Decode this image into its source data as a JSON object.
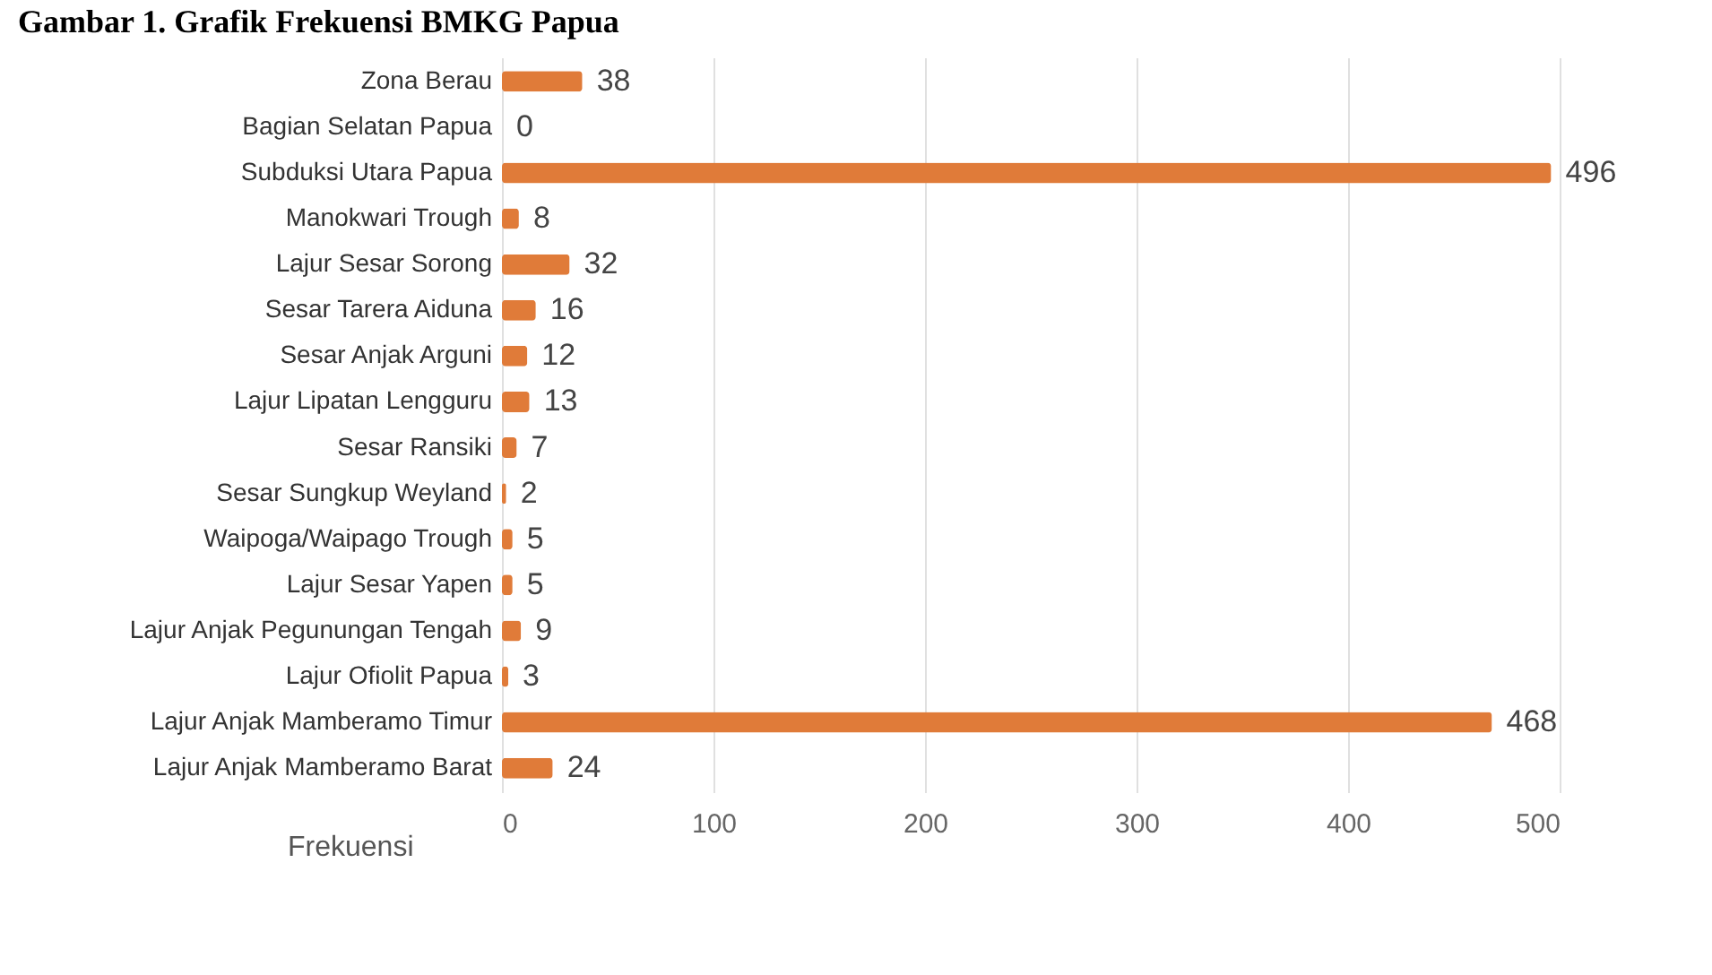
{
  "chart_data": {
    "type": "bar",
    "orientation": "horizontal",
    "title": "Gambar 1. Grafik Frekuensi BMKG Papua",
    "xlabel": "Frekuensi",
    "categories": [
      "Zona Berau",
      "Bagian Selatan Papua",
      "Subduksi Utara Papua",
      "Manokwari Trough",
      "Lajur Sesar Sorong",
      "Sesar Tarera Aiduna",
      "Sesar Anjak Arguni",
      "Lajur Lipatan Lengguru",
      "Sesar Ransiki",
      "Sesar Sungkup Weyland",
      "Waipoga/Waipago Trough",
      "Lajur Sesar Yapen",
      "Lajur Anjak Pegunungan Tengah",
      "Lajur Ofiolit Papua",
      "Lajur Anjak Mamberamo Timur",
      "Lajur Anjak Mamberamo Barat"
    ],
    "values": [
      38,
      0,
      496,
      8,
      32,
      16,
      12,
      13,
      7,
      2,
      5,
      5,
      9,
      3,
      468,
      24
    ],
    "color": "#e07b39",
    "xlim": [
      0,
      500
    ],
    "xticks": [
      0,
      100,
      200,
      300,
      400,
      500
    ],
    "grid": "x",
    "data_labels": true
  }
}
